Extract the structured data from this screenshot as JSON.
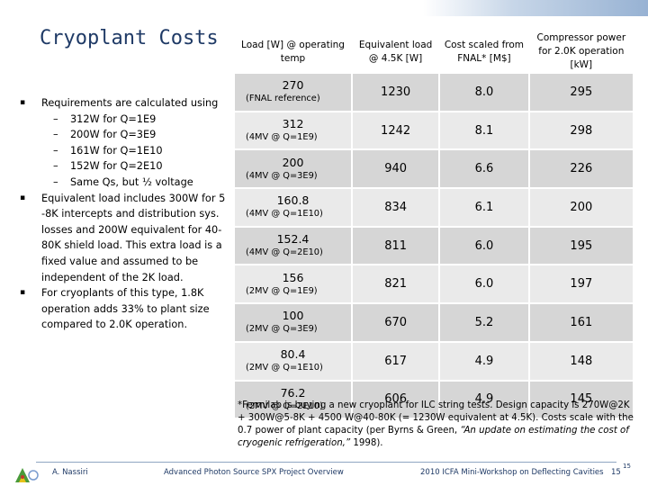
{
  "title": "Cryoplant Costs",
  "bullets": {
    "b1": "Requirements are calculated using",
    "subs": [
      "312W for Q=1E9",
      "200W for Q=3E9",
      "161W for Q=1E10",
      "152W for Q=2E10",
      "Same Qs, but ½ voltage"
    ],
    "b2": "Equivalent load includes 300W for 5 -8K intercepts and distribution sys. losses and 200W equivalent for 40-80K shield load.  This extra load is a fixed value and assumed to be independent of the 2K load.",
    "b3": "For cryoplants of this type, 1.8K operation adds 33% to plant size compared to 2.0K operation."
  },
  "table": {
    "headers": [
      "Load [W] @ operating temp",
      "Equivalent load @ 4.5K [W]",
      "Cost scaled from FNAL* [M$]",
      "Compressor power for 2.0K operation [kW]"
    ],
    "rows": [
      {
        "load": "270",
        "note": "(FNAL reference)",
        "equiv": "1230",
        "cost": "8.0",
        "power": "295"
      },
      {
        "load": "312",
        "note": "(4MV @ Q=1E9)",
        "equiv": "1242",
        "cost": "8.1",
        "power": "298"
      },
      {
        "load": "200",
        "note": "(4MV @ Q=3E9)",
        "equiv": "940",
        "cost": "6.6",
        "power": "226"
      },
      {
        "load": "160.8",
        "note": "(4MV @ Q=1E10)",
        "equiv": "834",
        "cost": "6.1",
        "power": "200"
      },
      {
        "load": "152.4",
        "note": "(4MV @ Q=2E10)",
        "equiv": "811",
        "cost": "6.0",
        "power": "195"
      },
      {
        "load": "156",
        "note": "(2MV @ Q=1E9)",
        "equiv": "821",
        "cost": "6.0",
        "power": "197"
      },
      {
        "load": "100",
        "note": "(2MV @ Q=3E9)",
        "equiv": "670",
        "cost": "5.2",
        "power": "161"
      },
      {
        "load": "80.4",
        "note": "(2MV @ Q=1E10)",
        "equiv": "617",
        "cost": "4.9",
        "power": "148"
      },
      {
        "load": "76.2",
        "note": "(2MV @ Q=2E10)",
        "equiv": "606",
        "cost": "4.9",
        "power": "145"
      }
    ]
  },
  "footnote": {
    "text": "*Fermilab is buying a new cryoplant for ILC string tests.  Design capacity is 270W@2K + 300W@5-8K + 4500 W@40-80K (= 1230W equivalent at 4.5K).  Costs scale with the 0.7 power of plant capacity (per Byrns & Green, ",
    "quote": "“An update on estimating the cost of cryogenic refrigeration,”",
    "end": " 1998)."
  },
  "footer": {
    "author": "A. Nassiri",
    "project": "Advanced Photon Source SPX Project Overview",
    "workshop": "2010 ICFA Mini-Workshop on Deflecting Cavities",
    "page": "15",
    "page_super": "15"
  },
  "colors": {
    "title": "#1f3a66",
    "row_dark": "#d6d6d6",
    "row_light": "#eaeaea"
  }
}
